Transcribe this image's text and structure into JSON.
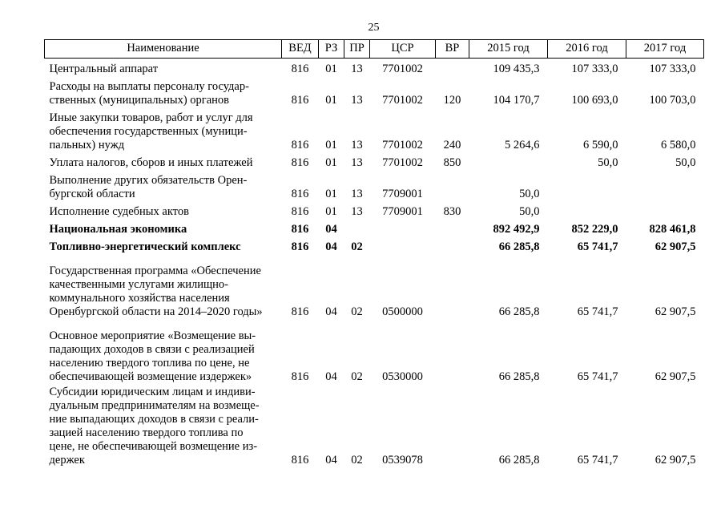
{
  "page": {
    "number": "25"
  },
  "table": {
    "columns": [
      {
        "key": "name",
        "label": "Наименование"
      },
      {
        "key": "ved",
        "label": "ВЕД"
      },
      {
        "key": "rz",
        "label": "РЗ"
      },
      {
        "key": "pr",
        "label": "ПР"
      },
      {
        "key": "csr",
        "label": "ЦСР"
      },
      {
        "key": "vr",
        "label": "ВР"
      },
      {
        "key": "y2015",
        "label": "2015 год"
      },
      {
        "key": "y2016",
        "label": "2016 год"
      },
      {
        "key": "y2017",
        "label": "2017 год"
      }
    ],
    "rows": [
      {
        "name": "Центральный аппарат",
        "ved": "816",
        "rz": "01",
        "pr": "13",
        "csr": "7701002",
        "vr": "",
        "y2015": "109 435,3",
        "y2016": "107 333,0",
        "y2017": "107 333,0",
        "bold": false
      },
      {
        "name": "Расходы на выплаты персоналу государ-\nственных (муниципальных) органов",
        "ved": "816",
        "rz": "01",
        "pr": "13",
        "csr": "7701002",
        "vr": "120",
        "y2015": "104 170,7",
        "y2016": "100 693,0",
        "y2017": "100 703,0",
        "bold": false
      },
      {
        "name": "Иные закупки товаров, работ и услуг для\nобеспечения государственных (муници-\nпальных) нужд",
        "ved": "816",
        "rz": "01",
        "pr": "13",
        "csr": "7701002",
        "vr": "240",
        "y2015": "5 264,6",
        "y2016": "6 590,0",
        "y2017": "6 580,0",
        "bold": false
      },
      {
        "name": "Уплата налогов, сборов и иных платежей",
        "ved": "816",
        "rz": "01",
        "pr": "13",
        "csr": "7701002",
        "vr": "850",
        "y2015": "",
        "y2016": "50,0",
        "y2017": "50,0",
        "bold": false
      },
      {
        "name": "Выполнение других обязательств Орен-\nбургской области",
        "ved": "816",
        "rz": "01",
        "pr": "13",
        "csr": "7709001",
        "vr": "",
        "y2015": "50,0",
        "y2016": "",
        "y2017": "",
        "bold": false
      },
      {
        "name": "Исполнение судебных актов",
        "ved": "816",
        "rz": "01",
        "pr": "13",
        "csr": "7709001",
        "vr": "830",
        "y2015": "50,0",
        "y2016": "",
        "y2017": "",
        "bold": false
      },
      {
        "name": "Национальная экономика",
        "ved": "816",
        "rz": "04",
        "pr": "",
        "csr": "",
        "vr": "",
        "y2015": "892 492,9",
        "y2016": "852 229,0",
        "y2017": "828 461,8",
        "bold": true
      },
      {
        "name": "Топливно-энергетический комплекс",
        "ved": "816",
        "rz": "04",
        "pr": "02",
        "csr": "",
        "vr": "",
        "y2015": "66 285,8",
        "y2016": "65 741,7",
        "y2017": "62 907,5",
        "bold": true
      },
      {
        "name": "Государственная программа «Обеспечение\nкачественными услугами жилищно-\nкоммунального хозяйства населения\nОренбургской области на 2014–2020 годы»",
        "ved": "816",
        "rz": "04",
        "pr": "02",
        "csr": "0500000",
        "vr": "",
        "y2015": "66 285,8",
        "y2016": "65 741,7",
        "y2017": "62 907,5",
        "bold": false,
        "spacing": "large"
      },
      {
        "name": "Основное мероприятие «Возмещение вы-\nпадающих доходов в связи с реализацией\nнаселению твердого топлива по цене, не\nобеспечивающей возмещение издержек»",
        "ved": "816",
        "rz": "04",
        "pr": "02",
        "csr": "0530000",
        "vr": "",
        "y2015": "66 285,8",
        "y2016": "65 741,7",
        "y2017": "62 907,5",
        "bold": false,
        "spacing": "large"
      },
      {
        "name": "Субсидии юридическим лицам и индиви-\nдуальным предпринимателям на возмеще-\nние выпадающих доходов в связи с реали-\nзацией населению твердого топлива по\nцене, не обеспечивающей возмещение из-\nдержек",
        "ved": "816",
        "rz": "04",
        "pr": "02",
        "csr": "0539078",
        "vr": "",
        "y2015": "66 285,8",
        "y2016": "65 741,7",
        "y2017": "62 907,5",
        "bold": false,
        "spacing": "tight"
      }
    ]
  }
}
